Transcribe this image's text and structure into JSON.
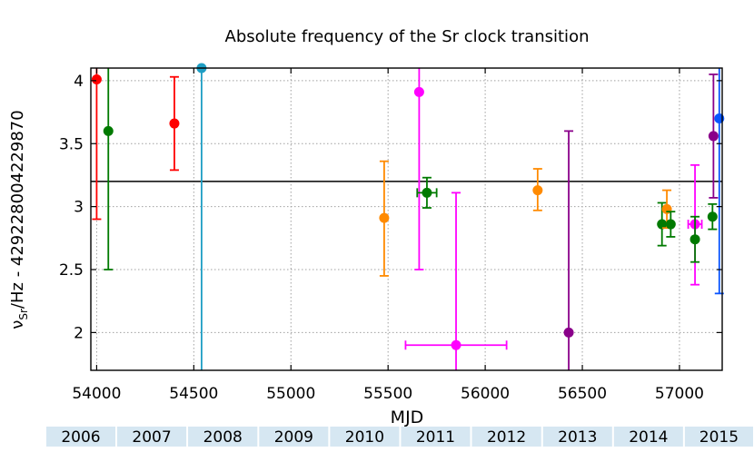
{
  "chart_data": {
    "type": "scatter",
    "title": "Absolute frequency of the Sr clock transition",
    "xlabel": "MJD",
    "ylabel": {
      "prefix": "ν",
      "subscript": "Sr",
      "suffix": "/Hz - 429228004229870"
    },
    "xlim": [
      53970,
      57220
    ],
    "ylim": [
      1.7,
      4.1
    ],
    "x_ticks": [
      54000,
      54500,
      55000,
      55500,
      56000,
      56500,
      57000
    ],
    "y_ticks": [
      2,
      2.5,
      3,
      3.5,
      4
    ],
    "y_tick_labels": [
      "2",
      "2.5",
      "3",
      "3.5",
      "4"
    ],
    "grid": true,
    "reference_line_y": 3.2,
    "year_bar": [
      {
        "label": "2006",
        "start": 53736,
        "end": 54101
      },
      {
        "label": "2007",
        "start": 54101,
        "end": 54466
      },
      {
        "label": "2008",
        "start": 54466,
        "end": 54832
      },
      {
        "label": "2009",
        "start": 54832,
        "end": 55197
      },
      {
        "label": "2010",
        "start": 55197,
        "end": 55562
      },
      {
        "label": "2011",
        "start": 55562,
        "end": 55927
      },
      {
        "label": "2012",
        "start": 55927,
        "end": 56293
      },
      {
        "label": "2013",
        "start": 56293,
        "end": 56658
      },
      {
        "label": "2014",
        "start": 56658,
        "end": 57023
      },
      {
        "label": "2015",
        "start": 57023,
        "end": 57388
      }
    ],
    "points": [
      {
        "x": 54000,
        "y": 4.01,
        "ylo": 2.9,
        "yhi": 4.1,
        "color": "#ff0000"
      },
      {
        "x": 54060,
        "y": 3.6,
        "ylo": 2.5,
        "yhi": 4.1,
        "color": "#007a00"
      },
      {
        "x": 54400,
        "y": 3.66,
        "ylo": 3.29,
        "yhi": 4.03,
        "color": "#ff0000"
      },
      {
        "x": 54540,
        "y": 4.1,
        "ylo": 1.7,
        "yhi": 4.1,
        "color": "#1e9ec4"
      },
      {
        "x": 55480,
        "y": 2.91,
        "ylo": 2.45,
        "yhi": 3.36,
        "color": "#ff8a00"
      },
      {
        "x": 55660,
        "y": 3.91,
        "ylo": 2.5,
        "yhi": 4.1,
        "color": "#ff00ff"
      },
      {
        "x": 55700,
        "y": 3.11,
        "ylo": 2.99,
        "yhi": 3.23,
        "xerr": 50,
        "color": "#007a00"
      },
      {
        "x": 55850,
        "y": 1.9,
        "ylo": 1.7,
        "yhi": 3.11,
        "xerr": 260,
        "color": "#ff00ff"
      },
      {
        "x": 56270,
        "y": 3.13,
        "ylo": 2.97,
        "yhi": 3.3,
        "color": "#ff8a00"
      },
      {
        "x": 56430,
        "y": 2.0,
        "ylo": 1.7,
        "yhi": 3.6,
        "color": "#8a008a"
      },
      {
        "x": 56910,
        "y": 2.86,
        "ylo": 2.69,
        "yhi": 3.03,
        "color": "#007a00"
      },
      {
        "x": 56935,
        "y": 2.98,
        "ylo": 2.83,
        "yhi": 3.13,
        "color": "#ff8a00"
      },
      {
        "x": 56955,
        "y": 2.86,
        "ylo": 2.76,
        "yhi": 2.96,
        "color": "#007a00"
      },
      {
        "x": 57080,
        "y": 2.86,
        "ylo": 2.38,
        "yhi": 3.33,
        "xerr": 35,
        "color": "#ff00ff"
      },
      {
        "x": 57080,
        "y": 2.74,
        "ylo": 2.56,
        "yhi": 2.92,
        "color": "#007a00"
      },
      {
        "x": 57170,
        "y": 2.92,
        "ylo": 2.82,
        "yhi": 3.02,
        "color": "#007a00"
      },
      {
        "x": 57175,
        "y": 3.56,
        "ylo": 3.07,
        "yhi": 4.05,
        "color": "#8a008a"
      },
      {
        "x": 57205,
        "y": 3.7,
        "ylo": 2.31,
        "yhi": 4.1,
        "color": "#0a55ff"
      }
    ]
  }
}
